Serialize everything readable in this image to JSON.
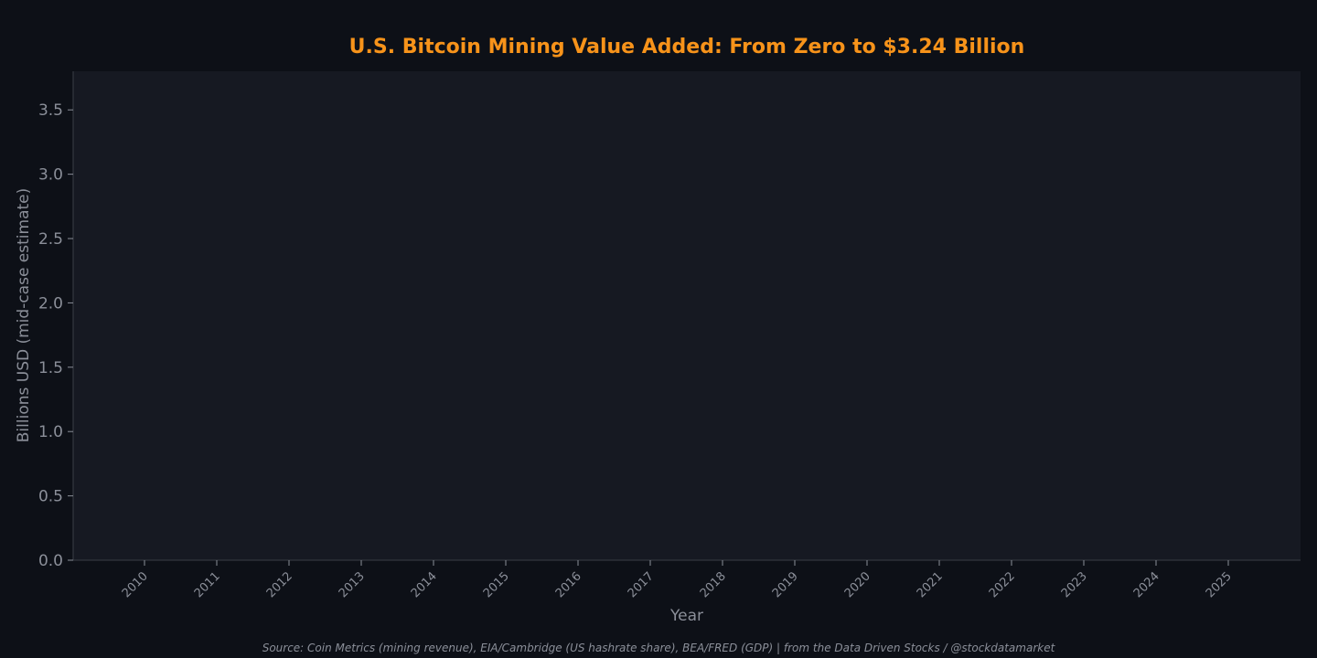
{
  "chart_data": {
    "type": "line",
    "title": "U.S. Bitcoin Mining Value Added: From Zero to $3.24 Billion",
    "xlabel": "Year",
    "ylabel": "Billions USD (mid-case estimate)",
    "x": [
      "2010",
      "2011",
      "2012",
      "2013",
      "2014",
      "2015",
      "2016",
      "2017",
      "2018",
      "2019",
      "2020",
      "2021",
      "2022",
      "2023",
      "2024",
      "2025"
    ],
    "y_ticks": [
      "0.0",
      "0.5",
      "1.0",
      "1.5",
      "2.0",
      "2.5",
      "3.0",
      "3.5"
    ],
    "ylim": [
      0,
      3.8
    ],
    "series": [],
    "grid": false,
    "source": "Source: Coin Metrics (mining revenue), EIA/Cambridge (US hashrate share), BEA/FRED (GDP) | from the Data Driven Stocks / @stockdatamarket",
    "colors": {
      "background": "#0d1017",
      "plot_background": "#161922",
      "title": "#f7931a",
      "text": "#8b8f99",
      "axis": "#3a3e47"
    }
  }
}
